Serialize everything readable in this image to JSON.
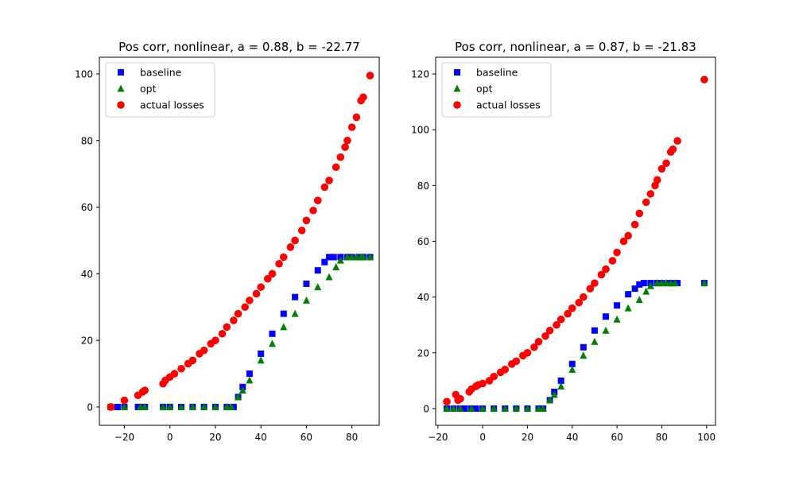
{
  "colors": {
    "baseline": "#0000ff",
    "opt": "#008000",
    "actual": "#ff0000"
  },
  "chart_data": [
    {
      "type": "scatter",
      "title": "Pos corr, nonlinear, a = 0.88, b = -22.77",
      "xlabel": "",
      "ylabel": "",
      "xlim": [
        -31,
        92
      ],
      "ylim": [
        -5.5,
        105
      ],
      "xticks": [
        -20,
        0,
        20,
        40,
        60,
        80
      ],
      "yticks": [
        0,
        20,
        40,
        60,
        80,
        100
      ],
      "grid": false,
      "legend": {
        "position": "upper-left",
        "entries": [
          "baseline",
          "opt",
          "actual losses"
        ]
      },
      "series": [
        {
          "name": "baseline",
          "marker": "square",
          "points": [
            [
              -26,
              0
            ],
            [
              -23,
              0
            ],
            [
              -20,
              0
            ],
            [
              -14,
              0
            ],
            [
              -13,
              0
            ],
            [
              -11,
              0
            ],
            [
              -3,
              0
            ],
            [
              0,
              0
            ],
            [
              5,
              0
            ],
            [
              10,
              0
            ],
            [
              15,
              0
            ],
            [
              20,
              0
            ],
            [
              25,
              0
            ],
            [
              28,
              0
            ],
            [
              30,
              3
            ],
            [
              32,
              6
            ],
            [
              35,
              10
            ],
            [
              40,
              16
            ],
            [
              45,
              22
            ],
            [
              50,
              28
            ],
            [
              55,
              33
            ],
            [
              60,
              37
            ],
            [
              65,
              41
            ],
            [
              68,
              43.5
            ],
            [
              70,
              45
            ],
            [
              72,
              45
            ],
            [
              75,
              45
            ],
            [
              78,
              45
            ],
            [
              80,
              45
            ],
            [
              83,
              45
            ],
            [
              85,
              45
            ],
            [
              88,
              45
            ]
          ]
        },
        {
          "name": "opt",
          "marker": "triangle",
          "points": [
            [
              -26,
              0
            ],
            [
              -20,
              0
            ],
            [
              -13,
              0
            ],
            [
              -11,
              0
            ],
            [
              -3,
              0
            ],
            [
              0,
              0
            ],
            [
              5,
              0
            ],
            [
              10,
              0
            ],
            [
              15,
              0
            ],
            [
              20,
              0
            ],
            [
              25,
              0
            ],
            [
              27,
              0
            ],
            [
              30,
              3
            ],
            [
              32,
              5
            ],
            [
              35,
              8
            ],
            [
              40,
              14
            ],
            [
              45,
              19
            ],
            [
              50,
              24
            ],
            [
              55,
              28
            ],
            [
              60,
              32
            ],
            [
              65,
              36
            ],
            [
              70,
              39
            ],
            [
              73,
              42
            ],
            [
              75,
              44
            ],
            [
              78,
              45
            ],
            [
              80,
              45
            ],
            [
              82,
              45
            ],
            [
              84,
              45
            ],
            [
              85,
              45
            ],
            [
              88,
              45
            ]
          ]
        },
        {
          "name": "actual losses",
          "marker": "circle",
          "points": [
            [
              -26,
              0
            ],
            [
              -20,
              2
            ],
            [
              -14,
              3.5
            ],
            [
              -12,
              4.5
            ],
            [
              -11,
              5
            ],
            [
              -3,
              7
            ],
            [
              -2,
              8
            ],
            [
              0,
              9
            ],
            [
              2,
              10
            ],
            [
              5,
              11.5
            ],
            [
              8,
              13
            ],
            [
              10,
              14
            ],
            [
              13,
              16
            ],
            [
              15,
              17
            ],
            [
              18,
              19
            ],
            [
              20,
              20
            ],
            [
              23,
              22
            ],
            [
              25,
              24
            ],
            [
              28,
              26
            ],
            [
              30,
              28
            ],
            [
              33,
              30
            ],
            [
              35,
              32
            ],
            [
              38,
              34
            ],
            [
              40,
              36
            ],
            [
              43,
              38.5
            ],
            [
              45,
              40
            ],
            [
              48,
              43
            ],
            [
              50,
              45
            ],
            [
              53,
              48
            ],
            [
              55,
              50
            ],
            [
              58,
              53
            ],
            [
              60,
              56
            ],
            [
              63,
              59
            ],
            [
              65,
              62
            ],
            [
              68,
              66
            ],
            [
              70,
              68
            ],
            [
              73,
              72
            ],
            [
              75,
              75
            ],
            [
              77,
              78
            ],
            [
              78,
              80
            ],
            [
              80,
              84
            ],
            [
              82,
              87
            ],
            [
              84,
              92
            ],
            [
              85,
              93
            ],
            [
              88,
              99.5
            ]
          ]
        }
      ]
    },
    {
      "type": "scatter",
      "title": "Pos corr, nonlinear, a = 0.87, b = -21.83",
      "xlabel": "",
      "ylabel": "",
      "xlim": [
        -21,
        104
      ],
      "ylim": [
        -6,
        126
      ],
      "xticks": [
        -20,
        0,
        20,
        40,
        60,
        80,
        100
      ],
      "yticks": [
        0,
        20,
        40,
        60,
        80,
        100,
        120
      ],
      "grid": false,
      "legend": {
        "position": "upper-left",
        "entries": [
          "baseline",
          "opt",
          "actual losses"
        ]
      },
      "series": [
        {
          "name": "baseline",
          "marker": "square",
          "points": [
            [
              -16,
              0
            ],
            [
              -13,
              0
            ],
            [
              -10,
              0
            ],
            [
              -8,
              0
            ],
            [
              -5,
              0
            ],
            [
              -3,
              0
            ],
            [
              0,
              0
            ],
            [
              5,
              0
            ],
            [
              10,
              0
            ],
            [
              15,
              0
            ],
            [
              20,
              0
            ],
            [
              25,
              0
            ],
            [
              27,
              0
            ],
            [
              30,
              3
            ],
            [
              32,
              6
            ],
            [
              35,
              10
            ],
            [
              40,
              16
            ],
            [
              45,
              22
            ],
            [
              50,
              28
            ],
            [
              55,
              33
            ],
            [
              60,
              37
            ],
            [
              65,
              41
            ],
            [
              68,
              43
            ],
            [
              70,
              44.5
            ],
            [
              72,
              45
            ],
            [
              75,
              45
            ],
            [
              78,
              45
            ],
            [
              80,
              45
            ],
            [
              83,
              45
            ],
            [
              85,
              45
            ],
            [
              87,
              45
            ],
            [
              99,
              45
            ]
          ]
        },
        {
          "name": "opt",
          "marker": "triangle",
          "points": [
            [
              -16,
              0
            ],
            [
              -13,
              0
            ],
            [
              -10,
              0
            ],
            [
              -5,
              0
            ],
            [
              0,
              0
            ],
            [
              5,
              0
            ],
            [
              10,
              0
            ],
            [
              15,
              0
            ],
            [
              20,
              0
            ],
            [
              25,
              0
            ],
            [
              27,
              0
            ],
            [
              30,
              3
            ],
            [
              32,
              5
            ],
            [
              35,
              8
            ],
            [
              40,
              14
            ],
            [
              45,
              19
            ],
            [
              50,
              24
            ],
            [
              55,
              28
            ],
            [
              60,
              32
            ],
            [
              65,
              36
            ],
            [
              70,
              39
            ],
            [
              73,
              42
            ],
            [
              75,
              44
            ],
            [
              78,
              45
            ],
            [
              80,
              45
            ],
            [
              82,
              45
            ],
            [
              84,
              45
            ],
            [
              86,
              45
            ],
            [
              99,
              45
            ]
          ]
        },
        {
          "name": "actual losses",
          "marker": "circle",
          "points": [
            [
              -16,
              2.5
            ],
            [
              -12,
              5
            ],
            [
              -11,
              3
            ],
            [
              -10,
              3.5
            ],
            [
              -6,
              6
            ],
            [
              -5,
              7
            ],
            [
              -3,
              8
            ],
            [
              -2,
              8.5
            ],
            [
              0,
              9
            ],
            [
              3,
              10
            ],
            [
              5,
              11.5
            ],
            [
              8,
              13
            ],
            [
              10,
              14
            ],
            [
              13,
              16
            ],
            [
              15,
              17
            ],
            [
              18,
              19
            ],
            [
              20,
              20
            ],
            [
              23,
              22
            ],
            [
              25,
              24
            ],
            [
              28,
              26
            ],
            [
              30,
              28
            ],
            [
              33,
              30
            ],
            [
              35,
              32
            ],
            [
              38,
              34
            ],
            [
              40,
              36
            ],
            [
              43,
              38
            ],
            [
              45,
              40
            ],
            [
              48,
              43
            ],
            [
              50,
              45
            ],
            [
              53,
              48
            ],
            [
              55,
              50
            ],
            [
              58,
              53
            ],
            [
              60,
              56
            ],
            [
              63,
              60
            ],
            [
              65,
              62
            ],
            [
              68,
              66
            ],
            [
              70,
              70
            ],
            [
              73,
              74
            ],
            [
              75,
              77
            ],
            [
              77,
              80
            ],
            [
              78,
              82
            ],
            [
              80,
              86
            ],
            [
              82,
              88
            ],
            [
              84,
              92
            ],
            [
              85,
              93
            ],
            [
              87,
              96
            ],
            [
              99,
              118
            ]
          ]
        }
      ]
    }
  ]
}
